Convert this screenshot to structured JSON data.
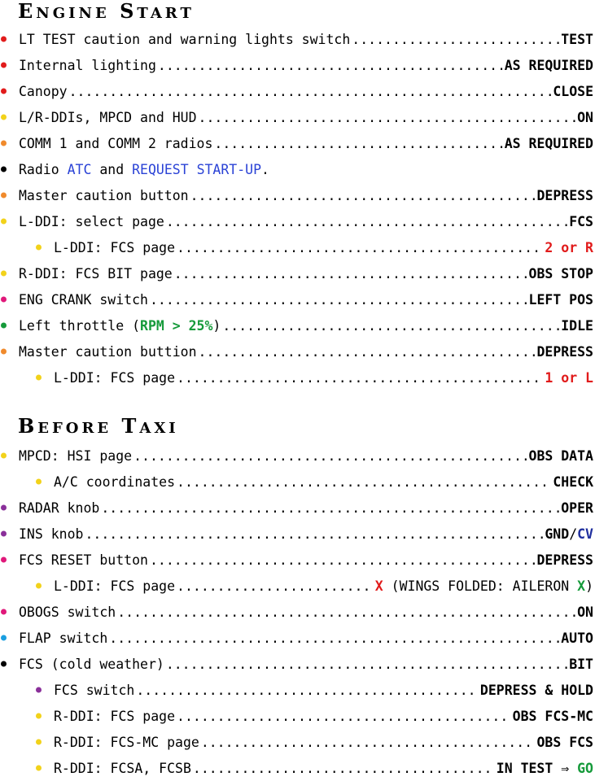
{
  "colors": {
    "red": "#e11b1b",
    "yellow": "#f2d21a",
    "orange": "#f08a2c",
    "black": "#000000",
    "magenta": "#e0187a",
    "green": "#159a3a",
    "purple": "#8a2f9a",
    "cyan": "#1a9ee0"
  },
  "sections": {
    "engine_start": {
      "title_first_big": "E",
      "title_first_small": "NGINE",
      "title_second_big": "S",
      "title_second_small": "TART",
      "items": [
        {
          "label": "LT TEST caution and warning lights switch",
          "value": "TEST"
        },
        {
          "label": "Internal lighting",
          "value": "AS REQUIRED"
        },
        {
          "label": "Canopy",
          "value": "CLOSE"
        },
        {
          "label": "L/R-DDIs, MPCD and HUD",
          "value": "ON"
        },
        {
          "label": "COMM 1 and COMM 2 radios",
          "value": "AS REQUIRED"
        },
        {
          "label_pre": "Radio ",
          "label_mid1": "ATC",
          "label_between": " and ",
          "label_mid2": "REQUEST START-UP",
          "label_post": "."
        },
        {
          "label": "Master caution button",
          "value": "DEPRESS"
        },
        {
          "label": "L-DDI: select page",
          "value": "FCS"
        },
        {
          "label": "L-DDI: FCS page",
          "value": "2 or R"
        },
        {
          "label": "R-DDI: FCS BIT page",
          "value": "OBS STOP"
        },
        {
          "label": "ENG CRANK switch",
          "value": "LEFT POS"
        },
        {
          "label_pre": "Left throttle (",
          "label_highlight": "RPM > 25%",
          "label_post": ")",
          "value": "IDLE"
        },
        {
          "label": "Master caution buttion",
          "value": "DEPRESS"
        },
        {
          "label": "L-DDI: FCS page",
          "value": "1 or L"
        }
      ]
    },
    "before_taxi": {
      "title_first_big": "B",
      "title_first_small": "EFORE",
      "title_second_big": "T",
      "title_second_small": "AXI",
      "items": [
        {
          "label": "MPCD: HSI page",
          "value": "OBS DATA"
        },
        {
          "label": "A/C coordinates",
          "value": "CHECK"
        },
        {
          "label": "RADAR knob",
          "value": "OPER"
        },
        {
          "label": "INS knob",
          "value_a": "GND",
          "value_sep": "/",
          "value_b": "CV"
        },
        {
          "label": "FCS RESET button",
          "value": "DEPRESS"
        },
        {
          "label": "L-DDI: FCS page",
          "value_x": "X",
          "value_text": " (WINGS FOLDED: AILERON ",
          "value_x2": "X",
          "value_close": ")"
        },
        {
          "label": "OBOGS switch",
          "value": "ON"
        },
        {
          "label": "FLAP switch",
          "value": "AUTO"
        },
        {
          "label": "FCS (cold weather)",
          "value": "BIT"
        },
        {
          "label": "FCS switch",
          "value": "DEPRESS & HOLD"
        },
        {
          "label": "R-DDI: FCS page",
          "value": "OBS FCS-MC"
        },
        {
          "label": "R-DDI: FCS-MC page",
          "value": "OBS FCS"
        },
        {
          "label": "R-DDI: FCSA, FCSB",
          "value_a": "IN TEST",
          "value_arrow": "⇒",
          "value_b": "GO"
        }
      ]
    }
  }
}
